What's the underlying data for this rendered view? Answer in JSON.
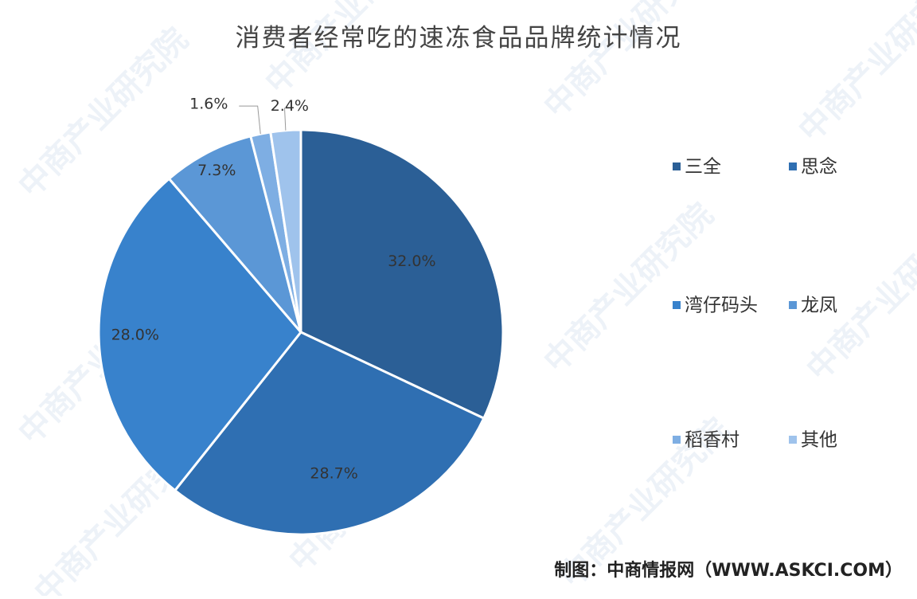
{
  "chart_data": {
    "type": "pie",
    "title": "消费者经常吃的速冻食品品牌统计情况",
    "categories": [
      "三全",
      "思念",
      "湾仔码头",
      "龙凤",
      "稻香村",
      "其他"
    ],
    "values": [
      32.0,
      28.7,
      28.0,
      7.3,
      1.6,
      2.4
    ],
    "labels": [
      "32.0%",
      "28.7%",
      "28.0%",
      "7.3%",
      "1.6%",
      "2.4%"
    ],
    "colors": [
      "#2b5f96",
      "#2f6fb2",
      "#3882cc",
      "#5b97d6",
      "#7eaee3",
      "#9fc3ec"
    ],
    "legend_position": "right",
    "start": "12 o'clock",
    "direction": "clockwise"
  },
  "source": "制图：中商情报网（WWW.ASKCI.COM）",
  "watermark": "中商产业研究院"
}
